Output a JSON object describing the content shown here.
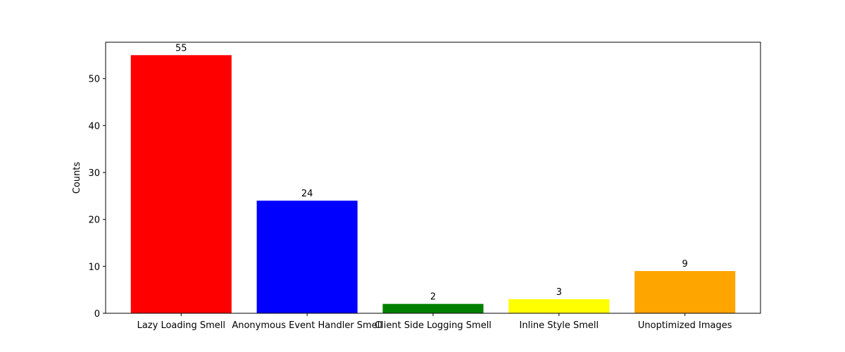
{
  "chart_data": {
    "type": "bar",
    "title": "",
    "xlabel": "",
    "ylabel": "Counts",
    "ylim": [
      0,
      57.75
    ],
    "yticks": [
      0,
      10,
      20,
      30,
      40,
      50
    ],
    "grid": false,
    "categories": [
      "Lazy Loading Smell",
      "Anonymous Event Handler Smell",
      "Client Side Logging Smell",
      "Inline Style Smell",
      "Unoptimized Images"
    ],
    "values": [
      55,
      24,
      2,
      3,
      9
    ],
    "colors": [
      "#ff0000",
      "#0000ff",
      "#008000",
      "#ffff00",
      "#ffa500"
    ]
  }
}
